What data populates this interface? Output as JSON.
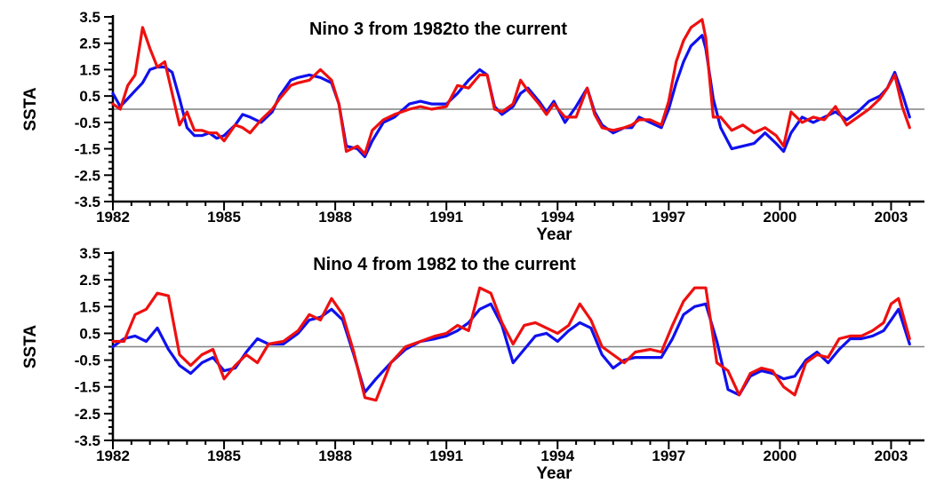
{
  "colors": {
    "series_a": "#1010ee",
    "series_b": "#ee1010",
    "zero_line": "#808080",
    "axes": "#000000"
  },
  "chart_data": [
    {
      "type": "line",
      "title": "Nino 3 from 1982to the current",
      "xlabel": "Year",
      "ylabel": "SSTA",
      "xlim": [
        1982,
        2003.9
      ],
      "ylim": [
        -3.5,
        3.5
      ],
      "xticks": [
        "1982",
        "1985",
        "1988",
        "1991",
        "1994",
        "1997",
        "2000",
        "2003"
      ],
      "yticks": [
        "3.5",
        "2.5",
        "1.5",
        "0.5",
        "-0.5",
        "-1.5",
        "-2.5",
        "-3.5"
      ],
      "grid": false,
      "zero_line": true,
      "series": [
        {
          "color": "#1010ee",
          "x": [
            1982.0,
            1982.2,
            1982.4,
            1982.6,
            1982.8,
            1983.0,
            1983.2,
            1983.4,
            1983.6,
            1983.8,
            1984.0,
            1984.2,
            1984.4,
            1984.6,
            1984.8,
            1985.0,
            1985.3,
            1985.5,
            1985.7,
            1986.0,
            1986.3,
            1986.5,
            1986.8,
            1987.0,
            1987.3,
            1987.6,
            1987.9,
            1988.1,
            1988.3,
            1988.6,
            1988.8,
            1989.0,
            1989.3,
            1989.6,
            1990.0,
            1990.3,
            1990.6,
            1991.0,
            1991.3,
            1991.6,
            1991.9,
            1992.1,
            1992.3,
            1992.5,
            1992.8,
            1993.0,
            1993.2,
            1993.5,
            1993.7,
            1993.9,
            1994.2,
            1994.5,
            1994.8,
            1995.0,
            1995.2,
            1995.5,
            1995.8,
            1996.0,
            1996.2,
            1996.5,
            1996.8,
            1997.0,
            1997.2,
            1997.4,
            1997.6,
            1997.9,
            1998.0,
            1998.2,
            1998.4,
            1998.7,
            1999.0,
            1999.3,
            1999.6,
            1999.9,
            2000.1,
            2000.3,
            2000.6,
            2000.9,
            2001.2,
            2001.5,
            2001.8,
            2002.1,
            2002.4,
            2002.7,
            2002.9,
            2003.1,
            2003.3,
            2003.5
          ],
          "y": [
            0.6,
            0.1,
            0.4,
            0.7,
            1.0,
            1.5,
            1.6,
            1.6,
            1.4,
            0.4,
            -0.7,
            -1.0,
            -1.0,
            -0.9,
            -1.1,
            -1.0,
            -0.6,
            -0.2,
            -0.3,
            -0.5,
            -0.1,
            0.5,
            1.1,
            1.2,
            1.3,
            1.2,
            1.0,
            0.2,
            -1.4,
            -1.5,
            -1.8,
            -1.2,
            -0.5,
            -0.3,
            0.2,
            0.3,
            0.2,
            0.2,
            0.6,
            1.1,
            1.5,
            1.3,
            0.1,
            -0.2,
            0.1,
            0.6,
            0.8,
            0.3,
            -0.1,
            0.3,
            -0.5,
            0.1,
            0.8,
            -0.1,
            -0.6,
            -0.9,
            -0.7,
            -0.7,
            -0.3,
            -0.5,
            -0.7,
            0.0,
            1.0,
            1.8,
            2.4,
            2.8,
            2.3,
            0.4,
            -0.7,
            -1.5,
            -1.4,
            -1.3,
            -0.9,
            -1.3,
            -1.6,
            -0.9,
            -0.3,
            -0.5,
            -0.3,
            -0.1,
            -0.4,
            -0.1,
            0.3,
            0.5,
            0.8,
            1.4,
            0.6,
            -0.3
          ]
        },
        {
          "color": "#ee1010",
          "x": [
            1982.0,
            1982.2,
            1982.4,
            1982.6,
            1982.8,
            1983.0,
            1983.2,
            1983.4,
            1983.6,
            1983.8,
            1984.0,
            1984.2,
            1984.4,
            1984.6,
            1984.8,
            1985.0,
            1985.3,
            1985.5,
            1985.7,
            1986.0,
            1986.3,
            1986.5,
            1986.8,
            1987.0,
            1987.3,
            1987.6,
            1987.9,
            1988.1,
            1988.3,
            1988.6,
            1988.8,
            1989.0,
            1989.3,
            1989.6,
            1990.0,
            1990.3,
            1990.6,
            1991.0,
            1991.3,
            1991.6,
            1991.9,
            1992.1,
            1992.3,
            1992.5,
            1992.8,
            1993.0,
            1993.2,
            1993.5,
            1993.7,
            1993.9,
            1994.2,
            1994.5,
            1994.8,
            1995.0,
            1995.2,
            1995.5,
            1995.8,
            1996.0,
            1996.2,
            1996.5,
            1996.8,
            1997.0,
            1997.2,
            1997.4,
            1997.6,
            1997.9,
            1998.0,
            1998.2,
            1998.4,
            1998.7,
            1999.0,
            1999.3,
            1999.6,
            1999.9,
            2000.1,
            2000.3,
            2000.6,
            2000.9,
            2001.2,
            2001.5,
            2001.8,
            2002.1,
            2002.4,
            2002.7,
            2002.9,
            2003.1,
            2003.3,
            2003.5
          ],
          "y": [
            0.2,
            0.0,
            0.9,
            1.3,
            3.1,
            2.3,
            1.6,
            1.8,
            0.6,
            -0.6,
            -0.1,
            -0.8,
            -0.8,
            -0.9,
            -0.9,
            -1.2,
            -0.6,
            -0.7,
            -0.9,
            -0.4,
            0.0,
            0.4,
            0.9,
            1.0,
            1.1,
            1.5,
            1.1,
            0.2,
            -1.6,
            -1.4,
            -1.7,
            -0.8,
            -0.4,
            -0.2,
            0.0,
            0.1,
            0.0,
            0.1,
            0.9,
            0.8,
            1.3,
            1.3,
            0.0,
            -0.1,
            0.2,
            1.1,
            0.7,
            0.2,
            -0.2,
            0.2,
            -0.3,
            -0.3,
            0.8,
            -0.2,
            -0.7,
            -0.8,
            -0.7,
            -0.6,
            -0.4,
            -0.4,
            -0.6,
            0.3,
            1.8,
            2.6,
            3.1,
            3.4,
            2.7,
            -0.3,
            -0.3,
            -0.8,
            -0.6,
            -0.9,
            -0.7,
            -1.0,
            -1.4,
            -0.1,
            -0.5,
            -0.3,
            -0.4,
            0.1,
            -0.6,
            -0.3,
            0.0,
            0.4,
            0.8,
            1.3,
            0.1,
            -0.7
          ]
        }
      ]
    },
    {
      "type": "line",
      "title": "Nino 4 from 1982 to the current",
      "xlabel": "Year",
      "ylabel": "SSTA",
      "xlim": [
        1982,
        2003.9
      ],
      "ylim": [
        -3.5,
        3.5
      ],
      "xticks": [
        "1982",
        "1985",
        "1988",
        "1991",
        "1994",
        "1997",
        "2000",
        "2003"
      ],
      "yticks": [
        "3.5",
        "2.5",
        "1.5",
        "0.5",
        "-0.5",
        "-1.5",
        "-2.5",
        "-3.5"
      ],
      "grid": false,
      "zero_line": true,
      "series": [
        {
          "color": "#1010ee",
          "x": [
            1982.0,
            1982.3,
            1982.6,
            1982.9,
            1983.2,
            1983.5,
            1983.8,
            1984.1,
            1984.4,
            1984.7,
            1985.0,
            1985.3,
            1985.6,
            1985.9,
            1986.2,
            1986.6,
            1987.0,
            1987.3,
            1987.6,
            1987.9,
            1988.2,
            1988.5,
            1988.8,
            1989.1,
            1989.5,
            1989.9,
            1990.3,
            1990.7,
            1991.0,
            1991.3,
            1991.6,
            1991.9,
            1992.2,
            1992.5,
            1992.8,
            1993.1,
            1993.4,
            1993.7,
            1994.0,
            1994.3,
            1994.6,
            1994.9,
            1995.2,
            1995.5,
            1995.8,
            1996.1,
            1996.5,
            1996.8,
            1997.1,
            1997.4,
            1997.7,
            1998.0,
            1998.3,
            1998.6,
            1998.9,
            1999.2,
            1999.5,
            1999.8,
            2000.1,
            2000.4,
            2000.7,
            2001.0,
            2001.3,
            2001.6,
            2001.9,
            2002.2,
            2002.5,
            2002.8,
            2003.0,
            2003.2,
            2003.5
          ],
          "y": [
            0.0,
            0.3,
            0.4,
            0.2,
            0.7,
            -0.1,
            -0.7,
            -1.0,
            -0.6,
            -0.4,
            -0.9,
            -0.8,
            -0.2,
            0.3,
            0.1,
            0.1,
            0.5,
            1.0,
            1.1,
            1.4,
            1.0,
            -0.3,
            -1.7,
            -1.2,
            -0.6,
            -0.1,
            0.2,
            0.3,
            0.4,
            0.6,
            0.9,
            1.4,
            1.6,
            0.8,
            -0.6,
            -0.1,
            0.4,
            0.5,
            0.2,
            0.6,
            0.9,
            0.7,
            -0.3,
            -0.8,
            -0.5,
            -0.4,
            -0.4,
            -0.4,
            0.3,
            1.2,
            1.5,
            1.6,
            0.2,
            -1.6,
            -1.8,
            -1.1,
            -0.9,
            -1.0,
            -1.2,
            -1.1,
            -0.5,
            -0.2,
            -0.6,
            -0.1,
            0.3,
            0.3,
            0.4,
            0.6,
            1.0,
            1.4,
            0.1
          ]
        },
        {
          "color": "#ee1010",
          "x": [
            1982.0,
            1982.3,
            1982.6,
            1982.9,
            1983.2,
            1983.5,
            1983.8,
            1984.1,
            1984.4,
            1984.7,
            1985.0,
            1985.3,
            1985.6,
            1985.9,
            1986.2,
            1986.6,
            1987.0,
            1987.3,
            1987.6,
            1987.9,
            1988.2,
            1988.5,
            1988.8,
            1989.1,
            1989.5,
            1989.9,
            1990.3,
            1990.7,
            1991.0,
            1991.3,
            1991.6,
            1991.9,
            1992.2,
            1992.5,
            1992.8,
            1993.1,
            1993.4,
            1993.7,
            1994.0,
            1994.3,
            1994.6,
            1994.9,
            1995.2,
            1995.5,
            1995.8,
            1996.1,
            1996.5,
            1996.8,
            1997.1,
            1997.4,
            1997.7,
            1998.0,
            1998.3,
            1998.6,
            1998.9,
            1999.2,
            1999.5,
            1999.8,
            2000.1,
            2000.4,
            2000.7,
            2001.0,
            2001.3,
            2001.6,
            2001.9,
            2002.2,
            2002.5,
            2002.8,
            2003.0,
            2003.2,
            2003.5
          ],
          "y": [
            0.2,
            0.2,
            1.2,
            1.4,
            2.0,
            1.9,
            -0.3,
            -0.7,
            -0.3,
            -0.1,
            -1.2,
            -0.7,
            -0.3,
            -0.6,
            0.1,
            0.2,
            0.6,
            1.2,
            1.0,
            1.8,
            1.2,
            -0.2,
            -1.9,
            -2.0,
            -0.6,
            0.0,
            0.2,
            0.4,
            0.5,
            0.8,
            0.6,
            2.2,
            2.0,
            0.9,
            0.1,
            0.8,
            0.9,
            0.7,
            0.5,
            0.8,
            1.6,
            1.0,
            0.0,
            -0.3,
            -0.6,
            -0.2,
            -0.1,
            -0.2,
            0.8,
            1.7,
            2.2,
            2.2,
            -0.6,
            -0.9,
            -1.8,
            -1.0,
            -0.8,
            -0.9,
            -1.5,
            -1.8,
            -0.6,
            -0.3,
            -0.4,
            0.3,
            0.4,
            0.4,
            0.6,
            0.9,
            1.6,
            1.8,
            0.3
          ]
        }
      ]
    }
  ]
}
